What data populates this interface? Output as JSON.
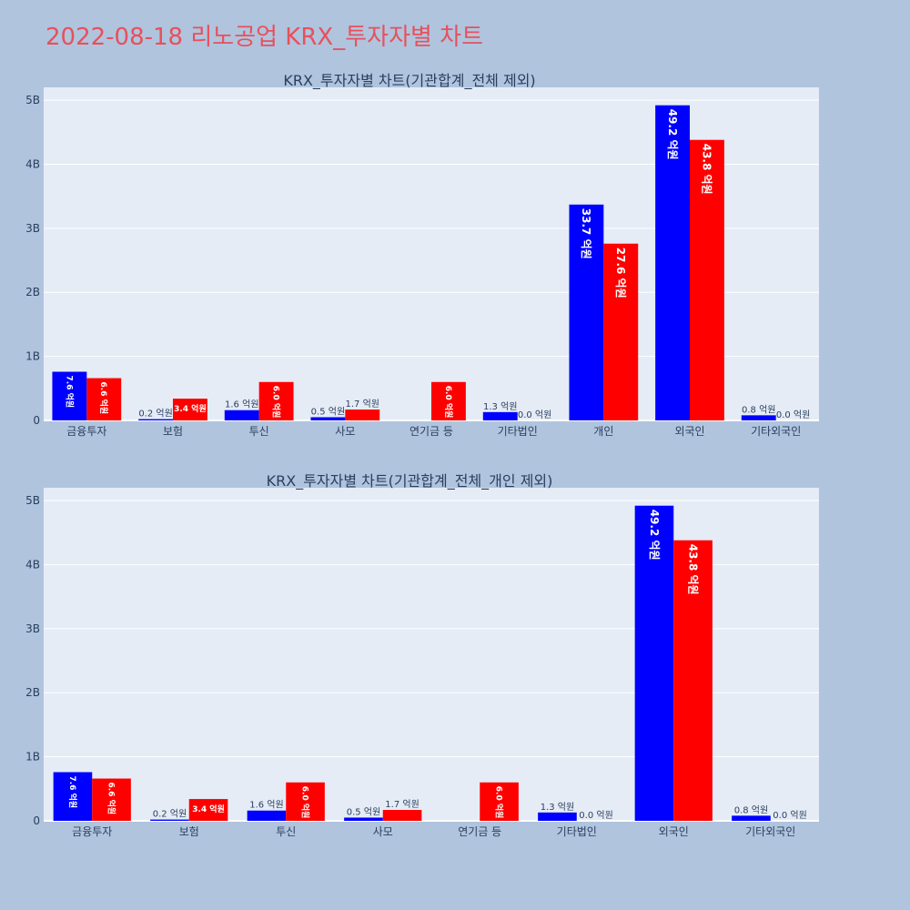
{
  "title": "2022-08-18 리노공업 KRX_투자자별 차트",
  "colors": {
    "title": "#e8505b",
    "buy": "#0000ff",
    "sell": "#ff0000"
  },
  "chart_data": [
    {
      "type": "bar",
      "title": "KRX_투자자별 차트(기관합계_전체 제외)",
      "categories": [
        "금융투자",
        "보험",
        "투신",
        "사모",
        "연기금 등",
        "기타법인",
        "개인",
        "외국인",
        "기타외국인"
      ],
      "series": [
        {
          "color": "#0000ff",
          "values": [
            0.76,
            0.02,
            0.16,
            0.05,
            0.0,
            0.13,
            3.37,
            4.92,
            0.08
          ],
          "labels": [
            "7.6 억원",
            "0.2 억원",
            "1.6 억원",
            "0.5 억원",
            "",
            "1.3 억원",
            "33.7 억원",
            "49.2 억원",
            "0.8 억원"
          ]
        },
        {
          "color": "#ff0000",
          "values": [
            0.66,
            0.34,
            0.6,
            0.17,
            0.6,
            0.0,
            2.76,
            4.38,
            0.0
          ],
          "labels": [
            "6.6 억원",
            "3.4 억원",
            "6.0 억원",
            "1.7 억원",
            "6.0 억원",
            "0.0 억원",
            "27.6 억원",
            "43.8 억원",
            "0.0 억원"
          ]
        }
      ],
      "ylim": [
        0,
        5.2
      ],
      "yticks": [
        "0",
        "1B",
        "2B",
        "3B",
        "4B",
        "5B"
      ],
      "grid": true
    },
    {
      "type": "bar",
      "title": "KRX_투자자별 차트(기관합계_전체_개인 제외)",
      "categories": [
        "금융투자",
        "보험",
        "투신",
        "사모",
        "연기금 등",
        "기타법인",
        "외국인",
        "기타외국인"
      ],
      "series": [
        {
          "color": "#0000ff",
          "values": [
            0.76,
            0.02,
            0.16,
            0.05,
            0.0,
            0.13,
            4.92,
            0.08
          ],
          "labels": [
            "7.6 억원",
            "0.2 억원",
            "1.6 억원",
            "0.5 억원",
            "",
            "1.3 억원",
            "49.2 억원",
            "0.8 억원"
          ]
        },
        {
          "color": "#ff0000",
          "values": [
            0.66,
            0.34,
            0.6,
            0.17,
            0.6,
            0.0,
            4.38,
            0.0
          ],
          "labels": [
            "6.6 억원",
            "3.4 억원",
            "6.0 억원",
            "1.7 억원",
            "6.0 억원",
            "0.0 억원",
            "43.8 억원",
            "0.0 억원"
          ]
        }
      ],
      "ylim": [
        0,
        5.2
      ],
      "yticks": [
        "0",
        "1B",
        "2B",
        "3B",
        "4B",
        "5B"
      ],
      "grid": true
    }
  ]
}
